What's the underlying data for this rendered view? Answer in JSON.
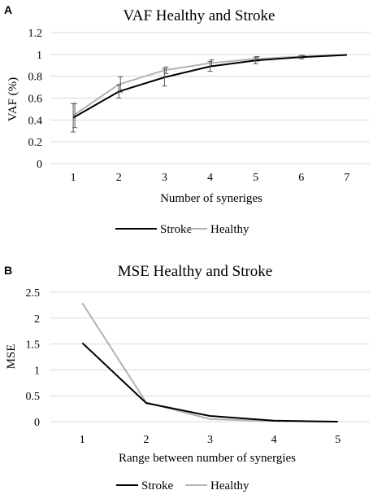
{
  "chart_data": [
    {
      "panel": "A",
      "type": "line",
      "title": "VAF Healthy and Stroke",
      "xlabel": "Number of syneriges",
      "ylabel": "VAF (%)",
      "x": [
        1,
        2,
        3,
        4,
        5,
        6,
        7
      ],
      "y_ticks": [
        "0",
        "0.2",
        "0.4",
        "0.6",
        "0.8",
        "1",
        "1.2"
      ],
      "ylim": [
        0,
        1.2
      ],
      "grid": "horizontal",
      "legend": "bottom",
      "series": [
        {
          "name": "Stroke",
          "color": "#000000",
          "values": [
            0.42,
            0.66,
            0.79,
            0.89,
            0.945,
            0.975,
            0.995
          ],
          "errors": [
            0.13,
            0.06,
            0.08,
            0.045,
            0.03,
            0.015,
            0.0
          ]
        },
        {
          "name": "Healthy",
          "color": "#b3b3b3",
          "values": [
            0.44,
            0.725,
            0.855,
            0.92,
            0.96,
            0.98,
            0.995
          ],
          "errors": [
            0.11,
            0.07,
            0.03,
            0.03,
            0.02,
            0.01,
            0.0
          ]
        }
      ]
    },
    {
      "panel": "B",
      "type": "line",
      "title": "MSE Healthy and Stroke",
      "xlabel": "Range between number of synergies",
      "ylabel": "MSE",
      "x": [
        1,
        2,
        3,
        4,
        5
      ],
      "y_ticks": [
        "0",
        "0.5",
        "1",
        "1.5",
        "2",
        "2.5"
      ],
      "ylim": [
        0,
        2.5
      ],
      "grid": "horizontal",
      "legend": "bottom",
      "series": [
        {
          "name": "Stroke",
          "color": "#000000",
          "values": [
            1.52,
            0.36,
            0.11,
            0.02,
            0.0
          ]
        },
        {
          "name": "Healthy",
          "color": "#b3b3b3",
          "values": [
            2.29,
            0.37,
            0.05,
            0.01,
            0.0
          ]
        }
      ]
    }
  ]
}
